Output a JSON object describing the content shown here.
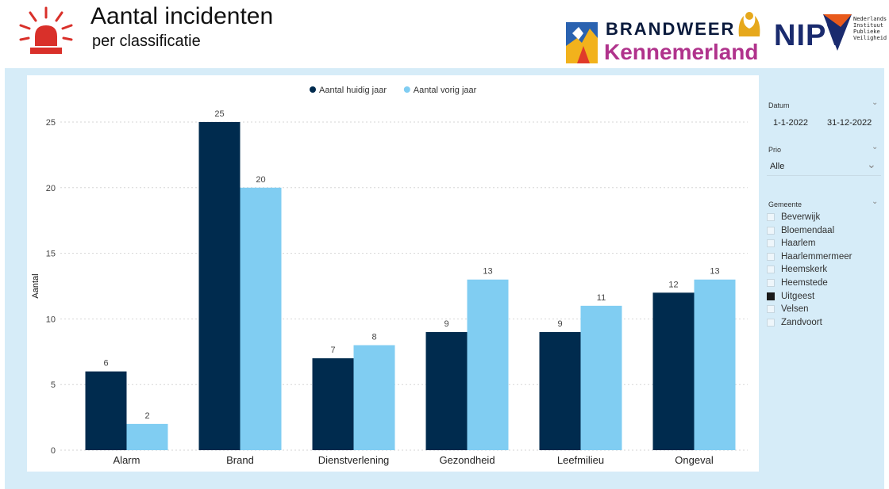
{
  "header": {
    "title": "Aantal incidenten",
    "subtitle": "per classificatie",
    "logo_bw_top": "BRANDWEER",
    "logo_bw_bottom": "Kennemerland",
    "logo_nipv": "NIPV",
    "logo_nipv_sub": [
      "Nederlands",
      "Instituut",
      "Publieke",
      "Veiligheid"
    ]
  },
  "chart_data": {
    "type": "bar",
    "categories": [
      "Alarm",
      "Brand",
      "Dienstverlening",
      "Gezondheid",
      "Leefmilieu",
      "Ongeval"
    ],
    "series": [
      {
        "name": "Aantal huidig jaar",
        "color": "#002b4e",
        "values": [
          6,
          25,
          7,
          9,
          9,
          12
        ]
      },
      {
        "name": "Aantal vorig jaar",
        "color": "#80cdf2",
        "values": [
          2,
          20,
          8,
          13,
          11,
          13
        ]
      }
    ],
    "ylabel": "Aantal",
    "xlabel": "",
    "ylim": [
      0,
      25
    ],
    "yticks": [
      0,
      5,
      10,
      15,
      20,
      25
    ],
    "legend": "top-center",
    "grid": true
  },
  "slicers": {
    "datum": {
      "title": "Datum",
      "from": "1-1-2022",
      "to": "31-12-2022"
    },
    "prio": {
      "title": "Prio",
      "value": "Alle"
    },
    "gemeente": {
      "title": "Gemeente",
      "items": [
        {
          "label": "Beverwijk",
          "checked": false
        },
        {
          "label": "Bloemendaal",
          "checked": false
        },
        {
          "label": "Haarlem",
          "checked": false
        },
        {
          "label": "Haarlemmermeer",
          "checked": false
        },
        {
          "label": "Heemskerk",
          "checked": false
        },
        {
          "label": "Heemstede",
          "checked": false
        },
        {
          "label": "Uitgeest",
          "checked": true
        },
        {
          "label": "Velsen",
          "checked": false
        },
        {
          "label": "Zandvoort",
          "checked": false
        }
      ]
    }
  },
  "icons": {
    "chevron": "chevron-down-icon",
    "siren": "siren-icon"
  }
}
